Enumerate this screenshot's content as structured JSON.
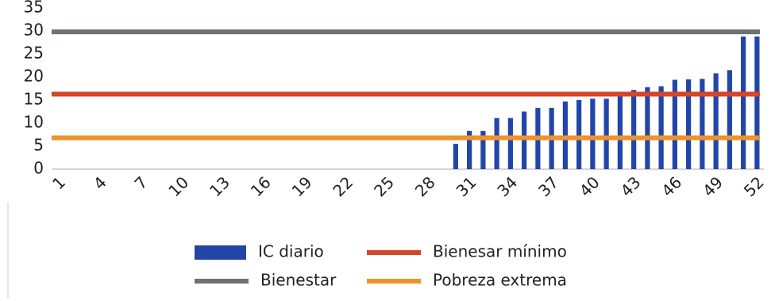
{
  "chart_data": {
    "type": "bar",
    "categories": [
      "1",
      null,
      null,
      "4",
      null,
      null,
      "7",
      null,
      null,
      "10",
      null,
      null,
      "13",
      null,
      null,
      "16",
      null,
      null,
      "19",
      null,
      null,
      "22",
      null,
      null,
      "25",
      null,
      null,
      "28",
      null,
      null,
      "31",
      null,
      null,
      "34",
      null,
      null,
      "37",
      null,
      null,
      "40",
      null,
      null,
      "43",
      null,
      null,
      "46",
      null,
      null,
      "49",
      null,
      null,
      "52"
    ],
    "series": [
      {
        "name": "IC diario",
        "color": "#2146a8",
        "values": [
          0,
          0,
          0,
          0,
          0,
          0,
          0,
          0,
          0,
          0,
          0,
          0,
          0,
          0,
          0,
          0,
          0,
          0,
          0,
          0,
          0,
          0,
          0,
          0,
          0,
          0,
          0,
          0,
          0,
          5.5,
          8.3,
          8.3,
          11.1,
          11.1,
          12.5,
          13.3,
          13.3,
          14.7,
          15.0,
          15.3,
          15.3,
          16.0,
          17.2,
          17.8,
          18.0,
          19.4,
          19.5,
          19.6,
          20.8,
          21.5,
          28.8,
          28.8
        ]
      }
    ],
    "reference_lines": [
      {
        "name": "Bienesar mínimo",
        "color": "#d5452a",
        "value": 16.3
      },
      {
        "name": "Bienestar",
        "color": "#6d7274",
        "value": 29.8
      },
      {
        "name": "Pobreza extrema",
        "color": "#f0922b",
        "value": 6.8
      }
    ],
    "ylim": [
      0,
      35
    ],
    "yticks": [
      0,
      5,
      10,
      15,
      20,
      25,
      30,
      35
    ],
    "grid": false
  }
}
